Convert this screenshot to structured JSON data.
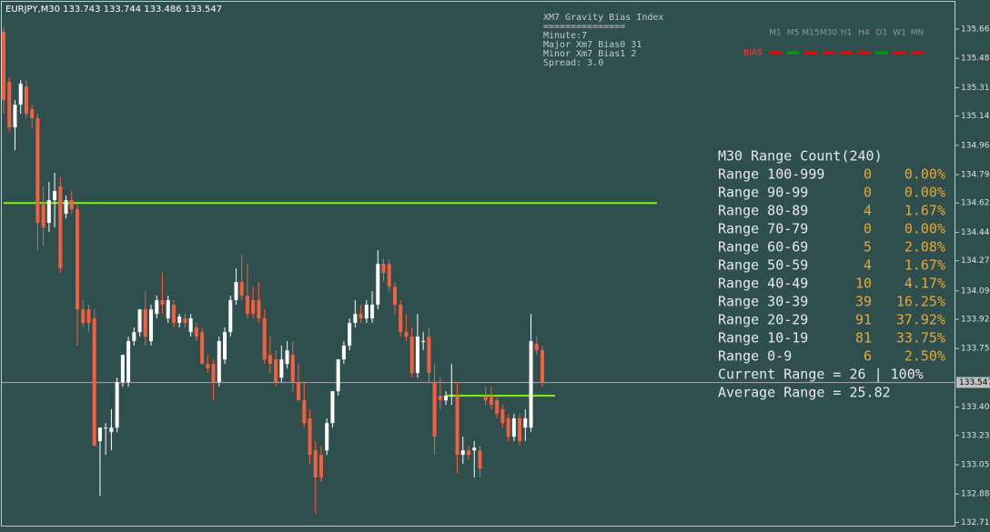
{
  "chart_data": {
    "type": "candlestick",
    "symbol_line": "EURJPY,M30  133.743 133.744 133.486 133.547",
    "up_color": "#ffffff",
    "down_color": "#f4603f",
    "open": [
      135.644,
      135.344,
      135.072,
      135.208,
      135.317,
      135.181,
      135.127,
      134.61,
      134.501,
      134.637,
      134.719,
      134.556,
      134.637,
      134.583,
      133.984,
      133.984,
      133.93,
      133.196,
      133.277,
      133.25,
      133.277,
      133.549,
      133.549,
      133.794,
      133.848,
      133.984,
      133.794,
      133.957,
      134.039,
      133.93,
      134.012,
      133.903,
      133.93,
      133.848,
      133.876,
      133.848,
      133.658,
      133.658,
      133.549,
      133.685,
      133.848,
      134.039,
      134.148,
      134.066,
      134.039,
      134.039,
      133.93,
      133.712,
      133.685,
      133.576,
      133.658,
      133.712,
      133.549,
      133.44,
      133.332,
      133.141,
      133.114,
      133.141,
      133.304,
      133.495,
      133.685,
      133.767,
      133.903,
      133.957,
      133.93,
      133.93,
      134.012,
      134.256,
      134.256,
      134.12,
      134.012,
      133.848,
      133.821,
      133.604,
      133.794,
      133.821,
      133.549,
      133.468,
      133.44,
      133.468,
      133.468,
      133.114,
      133.141,
      133.141,
      133.141,
      133.468,
      133.468,
      133.44,
      133.386,
      133.332,
      133.223,
      133.332,
      133.277,
      133.277,
      133.778,
      133.74
    ],
    "high": [
      135.671,
      135.372,
      135.236,
      135.355,
      135.355,
      135.208,
      135.154,
      134.719,
      134.746,
      134.8,
      134.773,
      134.664,
      134.692,
      134.61,
      134.039,
      134.012,
      133.984,
      133.277,
      133.304,
      133.386,
      133.576,
      133.712,
      133.821,
      133.876,
      133.984,
      134.093,
      134.012,
      134.066,
      134.202,
      134.066,
      134.039,
      133.957,
      133.957,
      133.957,
      133.903,
      133.876,
      133.712,
      133.685,
      133.821,
      133.876,
      134.066,
      134.229,
      134.311,
      134.256,
      134.12,
      134.148,
      133.984,
      133.821,
      133.74,
      133.767,
      133.794,
      133.794,
      133.658,
      133.549,
      133.386,
      133.196,
      133.168,
      133.332,
      133.495,
      133.685,
      133.794,
      133.93,
      134.039,
      134.012,
      134.039,
      134.093,
      134.338,
      134.284,
      134.284,
      134.148,
      134.039,
      133.957,
      133.876,
      133.957,
      133.848,
      133.876,
      133.658,
      133.576,
      133.495,
      133.658,
      133.549,
      133.223,
      133.168,
      133.196,
      133.168,
      133.522,
      133.522,
      133.468,
      133.413,
      133.359,
      133.359,
      133.359,
      133.386,
      133.957,
      133.821,
      133.767
    ],
    "low": [
      135.154,
      135.045,
      134.936,
      135.154,
      135.127,
      135.072,
      134.338,
      134.365,
      134.447,
      134.474,
      134.202,
      134.528,
      134.556,
      133.767,
      133.876,
      133.848,
      133.168,
      132.869,
      133.114,
      133.141,
      133.25,
      133.522,
      133.522,
      133.767,
      133.821,
      133.767,
      133.767,
      133.93,
      133.957,
      133.903,
      133.876,
      133.876,
      133.876,
      133.821,
      133.794,
      133.658,
      133.604,
      133.44,
      133.522,
      133.658,
      133.821,
      134.012,
      134.039,
      133.93,
      133.93,
      133.903,
      133.658,
      133.604,
      133.522,
      133.549,
      133.631,
      133.495,
      133.44,
      133.277,
      133.06,
      132.76,
      132.951,
      133.114,
      133.277,
      133.468,
      133.658,
      133.74,
      133.876,
      133.903,
      133.903,
      133.903,
      133.984,
      134.148,
      134.093,
      133.957,
      133.821,
      133.794,
      133.576,
      133.576,
      133.74,
      133.549,
      133.114,
      133.386,
      133.413,
      133.413,
      133.005,
      133.06,
      133.087,
      132.978,
      132.978,
      133.413,
      133.386,
      133.332,
      133.277,
      133.196,
      133.196,
      133.168,
      133.196,
      133.25,
      133.712,
      133.522
    ],
    "close": [
      135.236,
      135.072,
      135.208,
      135.334,
      135.154,
      135.127,
      134.501,
      134.474,
      134.637,
      134.692,
      134.229,
      134.637,
      134.583,
      133.984,
      133.903,
      133.903,
      133.168,
      133.277,
      133.277,
      133.277,
      133.549,
      133.712,
      133.794,
      133.848,
      133.984,
      133.821,
      133.984,
      134.039,
      134.012,
      134.039,
      133.903,
      133.941,
      133.903,
      133.93,
      133.821,
      133.658,
      133.631,
      133.549,
      133.794,
      133.848,
      134.039,
      134.148,
      134.066,
      133.957,
      133.957,
      133.93,
      133.685,
      133.658,
      133.549,
      133.685,
      133.74,
      133.549,
      133.44,
      133.304,
      133.114,
      132.978,
      132.978,
      133.304,
      133.495,
      133.685,
      133.767,
      133.903,
      133.957,
      133.93,
      134.012,
      134.012,
      134.256,
      134.202,
      134.12,
      134.012,
      133.848,
      133.821,
      133.604,
      133.821,
      133.794,
      133.604,
      133.223,
      133.44,
      133.468,
      133.468,
      133.114,
      133.141,
      133.114,
      133.157,
      133.032,
      133.44,
      133.413,
      133.359,
      133.304,
      133.223,
      133.332,
      133.196,
      133.332,
      133.794,
      133.74,
      133.547
    ],
    "ylim": [
      132.68,
      135.834
    ],
    "yticks": [
      {
        "value": 135.66,
        "label": "135.660"
      },
      {
        "value": 135.485,
        "label": "135.485"
      },
      {
        "value": 135.31,
        "label": "135.310"
      },
      {
        "value": 135.14,
        "label": "135.140"
      },
      {
        "value": 134.965,
        "label": "134.965"
      },
      {
        "value": 134.79,
        "label": "134.790"
      },
      {
        "value": 134.62,
        "label": "134.620"
      },
      {
        "value": 134.445,
        "label": "134.445"
      },
      {
        "value": 134.275,
        "label": "134.275"
      },
      {
        "value": 134.095,
        "label": "134.095"
      },
      {
        "value": 133.925,
        "label": "133.925"
      },
      {
        "value": 133.75,
        "label": "133.750"
      },
      {
        "value": 133.4,
        "label": "133.400"
      },
      {
        "value": 133.23,
        "label": "133.230"
      },
      {
        "value": 133.055,
        "label": "133.055"
      },
      {
        "value": 132.88,
        "label": "132.880"
      },
      {
        "value": 132.71,
        "label": "132.710"
      }
    ],
    "current_price": 133.547,
    "levels": [
      {
        "value": 134.62,
        "color": "#7cfc00"
      },
      {
        "value": 133.468,
        "color": "#7cfc00"
      }
    ]
  },
  "indicator": {
    "lines": [
      "XM7 Gravity Bias Index",
      "===============",
      "Minute:7",
      "Major Xm7 Bias0 31",
      "Minor Xm7 Bias1 2",
      "Spread: 3.0"
    ]
  },
  "bias": {
    "label": "BIAS",
    "timeframes": [
      "M1",
      "M5",
      "M15",
      "M30",
      "H1",
      "H4",
      "D1",
      "W1",
      "MN"
    ],
    "colors": [
      "#ff0000",
      "#00a000",
      "#ff0000",
      "#ff0000",
      "#ff0000",
      "#ff0000",
      "#00a000",
      "#ff0000",
      "#ff0000"
    ]
  },
  "range_table": {
    "title": "M30 Range Count(240)",
    "rows": [
      [
        "Range 100-999",
        0,
        "0.00%"
      ],
      [
        "Range 90-99",
        0,
        "0.00%"
      ],
      [
        "Range 80-89",
        4,
        "1.67%"
      ],
      [
        "Range 70-79",
        0,
        "0.00%"
      ],
      [
        "Range 60-69",
        5,
        "2.08%"
      ],
      [
        "Range 50-59",
        4,
        "1.67%"
      ],
      [
        "Range 40-49",
        10,
        "4.17%"
      ],
      [
        "Range 30-39",
        39,
        "16.25%"
      ],
      [
        "Range 20-29",
        91,
        "37.92%"
      ],
      [
        "Range 10-19",
        81,
        "33.75%"
      ],
      [
        "Range 0-9",
        6,
        "2.50%"
      ]
    ],
    "current": "Current Range = 26 | 100%",
    "average": "Average Range = 25.82"
  }
}
